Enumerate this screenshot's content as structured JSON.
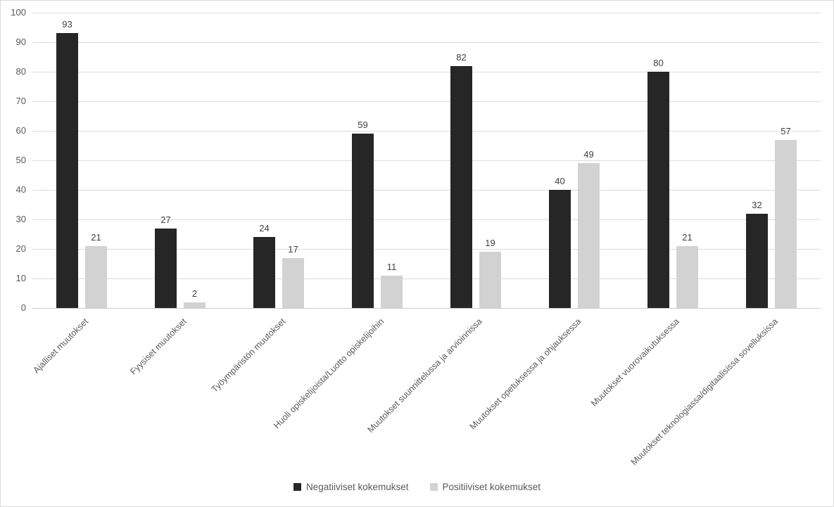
{
  "chart_data": {
    "type": "bar",
    "title": "",
    "xlabel": "",
    "ylabel": "",
    "categories": [
      "Ajalliset muutokset",
      "Fyysiset muutokset",
      "Työympäristön muutokset",
      "Huoli opiskelijoista/Luotto opiskelijoihin",
      "Muutokset suunnittelussa ja arvioinnissa",
      "Muutokset opetuksessa ja ohjauksessa",
      "Muutokset vuorovaikutuksessa",
      "Muutokset teknologiassa/digitaalisissa sovelluksissa"
    ],
    "series": [
      {
        "name": "Negatiiviset kokemukset",
        "color": "#262626",
        "values": [
          93,
          27,
          24,
          59,
          82,
          40,
          80,
          32
        ]
      },
      {
        "name": "Positiiviset kokemukset",
        "color": "#d2d2d2",
        "values": [
          21,
          2,
          17,
          11,
          19,
          49,
          21,
          57
        ]
      }
    ],
    "ylim": [
      0,
      100
    ],
    "yticks": [
      0,
      10,
      20,
      30,
      40,
      50,
      60,
      70,
      80,
      90,
      100
    ],
    "grid": true,
    "legend_position": "bottom",
    "value_labels_shown": true,
    "category_label_rotation_deg": 45
  },
  "colors": {
    "negative_series": "#262626",
    "positive_series": "#d2d2d2",
    "gridline": "#dcdcdc",
    "axis_line": "#cfcfcf",
    "axis_text": "#595959",
    "value_label_text": "#404040",
    "chart_border": "#d9d9d9",
    "background": "#ffffff"
  }
}
